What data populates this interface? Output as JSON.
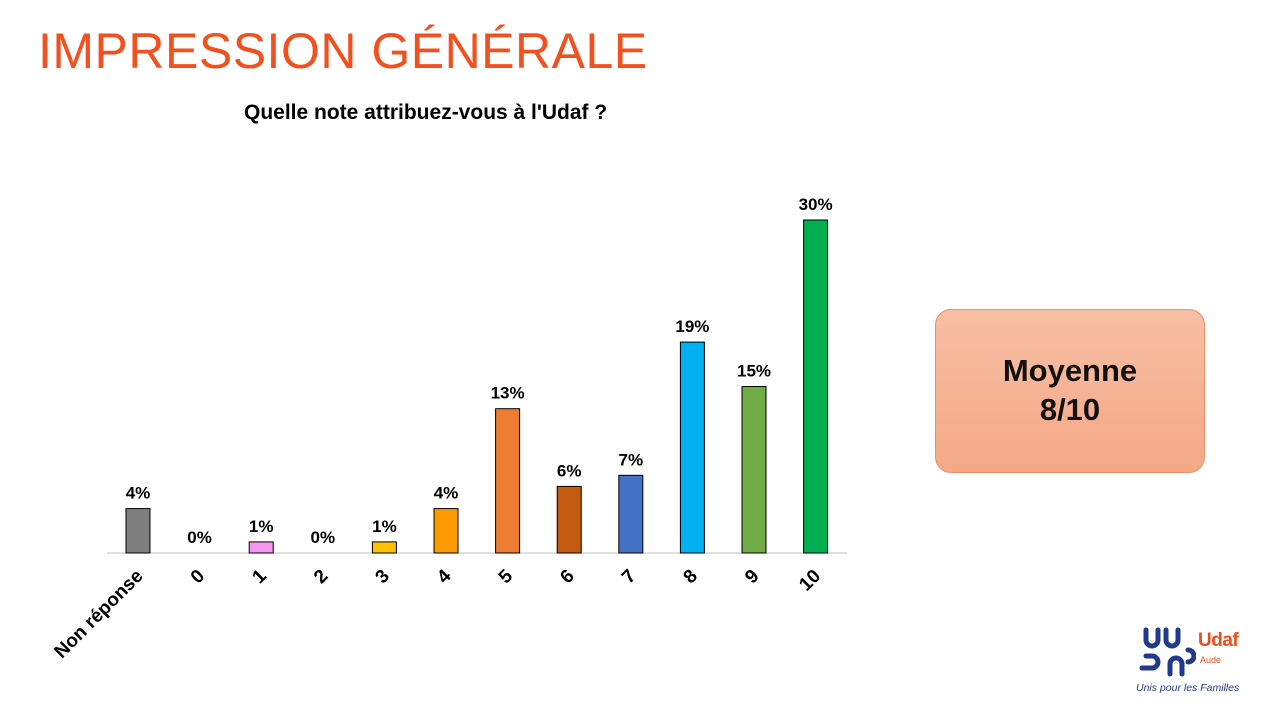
{
  "header": {
    "title": "IMPRESSION GÉNÉRALE",
    "title_color": "#f2501f"
  },
  "summary": {
    "line1": "Moyenne",
    "line2": "8/10"
  },
  "logo": {
    "name": "Udaf",
    "sub": "Aude",
    "tagline": "Unis pour les Familles"
  },
  "chart_data": {
    "type": "bar",
    "title": "Quelle note attribuez-vous à l'Udaf ?",
    "xlabel": "",
    "ylabel": "",
    "ylim": [
      0,
      30
    ],
    "grid": false,
    "categories": [
      "Non réponse",
      "0",
      "1",
      "2",
      "3",
      "4",
      "5",
      "6",
      "7",
      "8",
      "9",
      "10"
    ],
    "values": [
      4,
      0,
      1,
      0,
      1,
      4,
      13,
      6,
      7,
      19,
      15,
      30
    ],
    "labels": [
      "4%",
      "0%",
      "1%",
      "0%",
      "1%",
      "4%",
      "13%",
      "6%",
      "7%",
      "19%",
      "15%",
      "30%"
    ],
    "colors": [
      "#7f7f7f",
      "#7f7f7f",
      "#f595ee",
      "#7f7f7f",
      "#ffc000",
      "#ff9900",
      "#ed7d31",
      "#c55a11",
      "#4472c4",
      "#00b0f0",
      "#70ad47",
      "#00b050"
    ]
  }
}
